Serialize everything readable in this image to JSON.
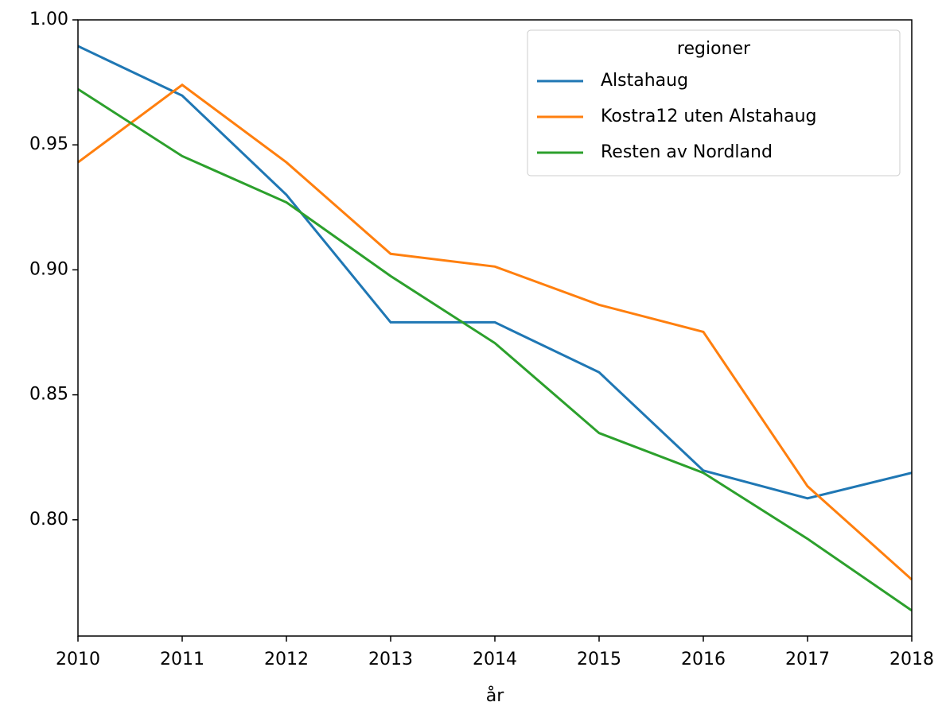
{
  "chart_data": {
    "type": "line",
    "x_label": "år",
    "x": [
      2010,
      2011,
      2012,
      2013,
      2014,
      2015,
      2016,
      2017,
      2018
    ],
    "series": [
      {
        "name": "Alstahaug",
        "color": "#1f77b4",
        "values": [
          0.9895,
          0.9697,
          0.93,
          0.879,
          0.879,
          0.859,
          0.8197,
          0.8086,
          0.8188
        ]
      },
      {
        "name": "Kostra12 uten Alstahaug",
        "color": "#ff7f0e",
        "values": [
          0.943,
          0.974,
          0.943,
          0.9064,
          0.9013,
          0.886,
          0.8752,
          0.8134,
          0.7761
        ]
      },
      {
        "name": "Resten av Nordland",
        "color": "#2ca02c",
        "values": [
          0.9723,
          0.9455,
          0.927,
          0.8975,
          0.8707,
          0.8347,
          0.8188,
          0.7924,
          0.7637
        ]
      }
    ],
    "legend_title": "regioner",
    "legend": "upper right",
    "xlim": [
      2010,
      2018
    ],
    "xticks": [
      2010,
      2011,
      2012,
      2013,
      2014,
      2015,
      2016,
      2017,
      2018
    ],
    "ylim": [
      0.7535,
      1.0
    ],
    "yticks": [
      {
        "value": 0.8,
        "label": "0.80"
      },
      {
        "value": 0.85,
        "label": "0.85"
      },
      {
        "value": 0.9,
        "label": "0.90"
      },
      {
        "value": 0.95,
        "label": "0.95"
      },
      {
        "value": 1.0,
        "label": "1.00"
      }
    ],
    "grid": false
  }
}
